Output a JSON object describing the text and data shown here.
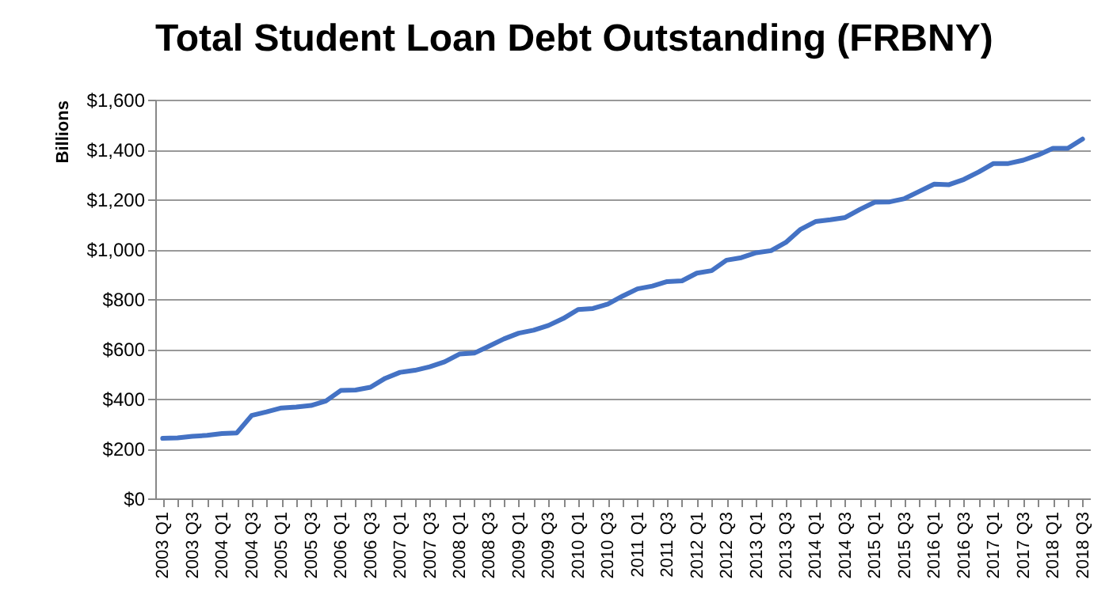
{
  "chart_data": {
    "type": "line",
    "title": "Total Student Loan Debt Outstanding (FRBNY)",
    "ylabel": "Billions",
    "categories": [
      "2003 Q1",
      null,
      "2003 Q3",
      null,
      "2004 Q1",
      null,
      "2004 Q3",
      null,
      "2005 Q1",
      null,
      "2005 Q3",
      null,
      "2006 Q1",
      null,
      "2006 Q3",
      null,
      "2007 Q1",
      null,
      "2007 Q3",
      null,
      "2008 Q1",
      null,
      "2008 Q3",
      null,
      "2009 Q1",
      null,
      "2009 Q3",
      null,
      "2010 Q1",
      null,
      "2010 Q3",
      null,
      "2011 Q1",
      null,
      "2011 Q3",
      null,
      "2012 Q1",
      null,
      "2012 Q3",
      null,
      "2013 Q1",
      null,
      "2013 Q3",
      null,
      "2014 Q1",
      null,
      "2014 Q3",
      null,
      "2015 Q1",
      null,
      "2015 Q3",
      null,
      "2016 Q1",
      null,
      "2016 Q3",
      null,
      "2017 Q1",
      null,
      "2017 Q3",
      null,
      "2018 Q1",
      null,
      "2018 Q3"
    ],
    "series": [
      {
        "color": "#4472c4",
        "values": [
          241,
          243,
          249,
          253,
          260,
          263,
          333,
          347,
          363,
          367,
          373,
          391,
          433,
          435,
          446,
          482,
          506,
          514,
          528,
          548,
          579,
          583,
          611,
          640,
          663,
          675,
          694,
          722,
          758,
          762,
          780,
          812,
          841,
          852,
          870,
          873,
          904,
          914,
          956,
          966,
          986,
          994,
          1027,
          1080,
          1111,
          1118,
          1127,
          1160,
          1189,
          1190,
          1203,
          1232,
          1261,
          1259,
          1280,
          1310,
          1344,
          1344,
          1357,
          1378,
          1405,
          1405,
          1442
        ]
      }
    ],
    "ylim": [
      0,
      1600
    ],
    "yticks": [
      {
        "value": 0,
        "label": "$0"
      },
      {
        "value": 200,
        "label": "$200"
      },
      {
        "value": 400,
        "label": "$400"
      },
      {
        "value": 600,
        "label": "$600"
      },
      {
        "value": 800,
        "label": "$800"
      },
      {
        "value": 1000,
        "label": "$1,000"
      },
      {
        "value": 1200,
        "label": "$1,200"
      },
      {
        "value": 1400,
        "label": "$1,400"
      },
      {
        "value": 1600,
        "label": "$1,600"
      }
    ],
    "grid": "y"
  }
}
